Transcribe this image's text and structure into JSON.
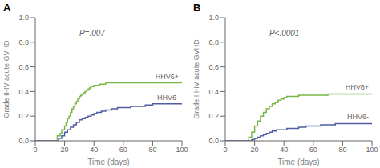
{
  "chart_data": [
    {
      "type": "step",
      "title": "A",
      "annotations": [
        "P=.007"
      ],
      "xlabel": "Time (days)",
      "ylabel": "Grade II-IV acute GVHD",
      "xlim": [
        0,
        100
      ],
      "ylim": [
        0,
        1.0
      ],
      "xticks": [
        0,
        20,
        40,
        60,
        80,
        100
      ],
      "yticks": [
        {
          "value": 0.0,
          "label": "0.0"
        },
        {
          "value": 0.2,
          "label": "0.2"
        },
        {
          "value": 0.4,
          "label": "0.4"
        },
        {
          "value": 0.6,
          "label": "0.6"
        },
        {
          "value": 0.8,
          "label": "0.8"
        },
        {
          "value": 1.0,
          "label": "1.0"
        }
      ],
      "grid": false,
      "series": [
        {
          "name": "HHV6+",
          "color": "#7ab648",
          "x": [
            0,
            14,
            15,
            17,
            18,
            20,
            21,
            22,
            23,
            24,
            25,
            26,
            27,
            28,
            29,
            30,
            31,
            32,
            33,
            34,
            35,
            36,
            37,
            38,
            39,
            40,
            42,
            44,
            46,
            48,
            52,
            55,
            60,
            65,
            70,
            75,
            80,
            85,
            100
          ],
          "values": [
            0,
            0,
            0.04,
            0.06,
            0.09,
            0.12,
            0.15,
            0.18,
            0.2,
            0.23,
            0.26,
            0.28,
            0.3,
            0.32,
            0.34,
            0.36,
            0.37,
            0.38,
            0.39,
            0.4,
            0.41,
            0.42,
            0.43,
            0.44,
            0.44,
            0.45,
            0.45,
            0.46,
            0.46,
            0.47,
            0.47,
            0.47,
            0.47,
            0.47,
            0.47,
            0.47,
            0.47,
            0.47,
            0.47
          ]
        },
        {
          "name": "HHV6-",
          "color": "#4f5da4",
          "x": [
            0,
            14,
            16,
            18,
            20,
            22,
            24,
            26,
            28,
            30,
            32,
            34,
            36,
            38,
            40,
            42,
            45,
            48,
            52,
            56,
            60,
            65,
            70,
            75,
            80,
            85,
            100
          ],
          "values": [
            0,
            0,
            0.02,
            0.04,
            0.07,
            0.09,
            0.11,
            0.13,
            0.15,
            0.17,
            0.18,
            0.19,
            0.2,
            0.21,
            0.22,
            0.23,
            0.24,
            0.25,
            0.26,
            0.27,
            0.27,
            0.28,
            0.28,
            0.29,
            0.3,
            0.3,
            0.3
          ]
        }
      ]
    },
    {
      "type": "step",
      "title": "B",
      "annotations": [
        "P<.0001"
      ],
      "xlabel": "Time (days)",
      "ylabel": "Grade III-IV acute GVHD",
      "xlim": [
        0,
        100
      ],
      "ylim": [
        0,
        1.0
      ],
      "xticks": [
        0,
        20,
        40,
        60,
        80,
        100
      ],
      "yticks": [
        {
          "value": 0.0,
          "label": "0.0"
        },
        {
          "value": 0.2,
          "label": "0.2"
        },
        {
          "value": 0.4,
          "label": "0.4"
        },
        {
          "value": 0.6,
          "label": "0.6"
        },
        {
          "value": 0.8,
          "label": "0.8"
        },
        {
          "value": 1.0,
          "label": "1.0"
        }
      ],
      "grid": false,
      "series": [
        {
          "name": "HHV6+",
          "color": "#7ab648",
          "x": [
            0,
            14,
            16,
            18,
            20,
            22,
            24,
            26,
            28,
            30,
            32,
            34,
            36,
            38,
            40,
            42,
            45,
            50,
            55,
            60,
            65,
            70,
            75,
            80,
            85,
            100
          ],
          "values": [
            0,
            0,
            0.03,
            0.07,
            0.12,
            0.16,
            0.2,
            0.23,
            0.26,
            0.28,
            0.3,
            0.31,
            0.33,
            0.34,
            0.35,
            0.36,
            0.36,
            0.37,
            0.37,
            0.37,
            0.37,
            0.38,
            0.38,
            0.38,
            0.38,
            0.38
          ]
        },
        {
          "name": "HHV6-",
          "color": "#4f5da4",
          "x": [
            0,
            16,
            18,
            20,
            22,
            24,
            26,
            28,
            30,
            32,
            35,
            38,
            42,
            46,
            50,
            55,
            60,
            65,
            70,
            75,
            80,
            85,
            100
          ],
          "values": [
            0,
            0,
            0.01,
            0.02,
            0.03,
            0.04,
            0.05,
            0.06,
            0.07,
            0.08,
            0.09,
            0.09,
            0.1,
            0.1,
            0.11,
            0.12,
            0.12,
            0.13,
            0.13,
            0.14,
            0.14,
            0.14,
            0.14
          ]
        }
      ]
    }
  ]
}
